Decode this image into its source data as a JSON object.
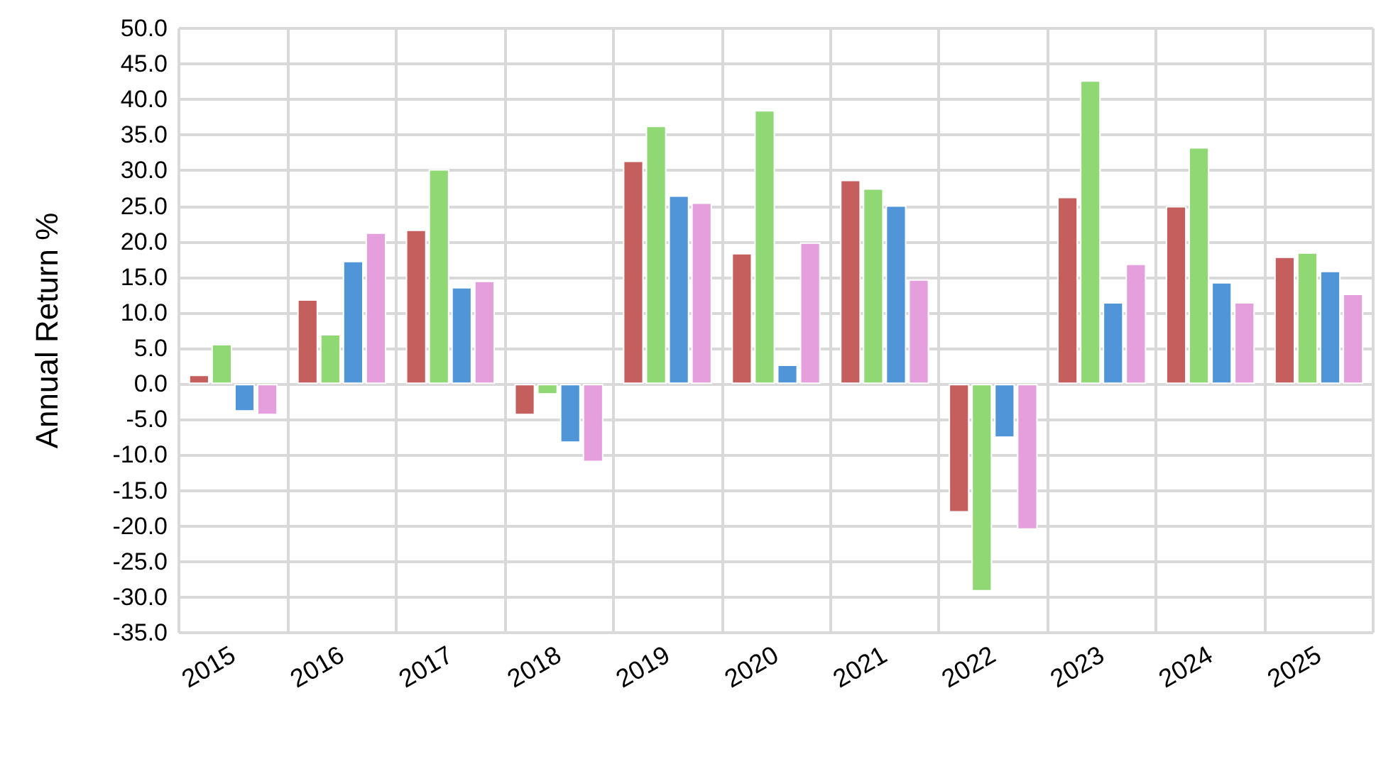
{
  "chart_data": {
    "type": "bar",
    "ylabel": "Annual Return %",
    "categories": [
      "2015",
      "2016",
      "2017",
      "2018",
      "2019",
      "2020",
      "2021",
      "2022",
      "2023",
      "2024",
      "2025"
    ],
    "series": [
      {
        "color": "#c55f5d",
        "values": [
          1.3,
          11.9,
          21.7,
          -4.4,
          31.4,
          18.4,
          28.7,
          -18.1,
          26.3,
          25.0,
          17.9
        ]
      },
      {
        "color": "#8fd873",
        "values": [
          5.6,
          7.0,
          30.2,
          -1.5,
          36.3,
          38.5,
          27.5,
          -29.2,
          42.7,
          33.3,
          18.5
        ]
      },
      {
        "color": "#5095d8",
        "values": [
          -3.9,
          17.3,
          13.6,
          -8.3,
          26.5,
          2.7,
          25.1,
          -7.6,
          11.5,
          14.3,
          15.9
        ]
      },
      {
        "color": "#e49fdc",
        "values": [
          -4.4,
          21.3,
          14.5,
          -11.0,
          25.5,
          19.9,
          14.7,
          -20.5,
          16.9,
          11.5,
          12.7
        ]
      }
    ],
    "ylim": [
      -35,
      50
    ],
    "yticks": [
      {
        "value": -35,
        "label": "-35.0"
      },
      {
        "value": -30,
        "label": "-30.0"
      },
      {
        "value": -25,
        "label": "-25.0"
      },
      {
        "value": -20,
        "label": "-20.0"
      },
      {
        "value": -15,
        "label": "-15.0"
      },
      {
        "value": -10,
        "label": "-10.0"
      },
      {
        "value": -5,
        "label": "-5.0"
      },
      {
        "value": 0,
        "label": "0.0"
      },
      {
        "value": 5,
        "label": "5.0"
      },
      {
        "value": 10,
        "label": "10.0"
      },
      {
        "value": 15,
        "label": "15.0"
      },
      {
        "value": 20,
        "label": "20.0"
      },
      {
        "value": 25,
        "label": "25.0"
      },
      {
        "value": 30,
        "label": "30.0"
      },
      {
        "value": 35,
        "label": "35.0"
      },
      {
        "value": 40,
        "label": "40.0"
      },
      {
        "value": 45,
        "label": "45.0"
      },
      {
        "value": 50,
        "label": "50.0"
      }
    ],
    "grid": true
  }
}
